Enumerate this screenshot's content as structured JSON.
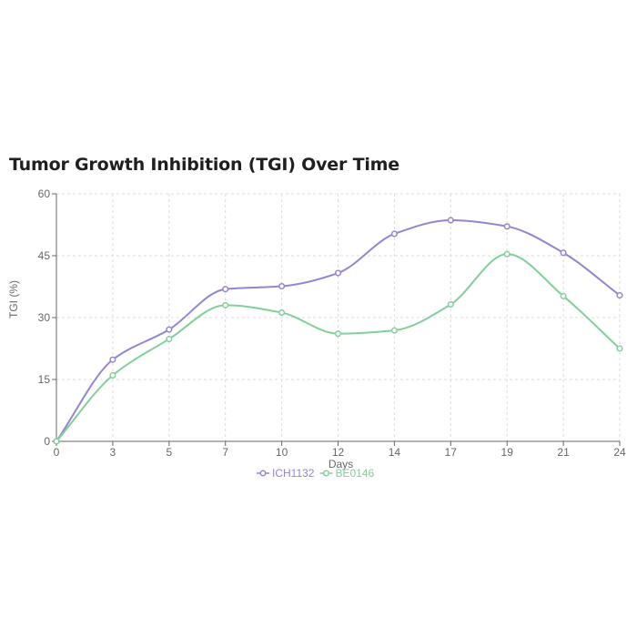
{
  "chart_data": {
    "type": "line",
    "title": "Tumor Growth Inhibition (TGI) Over Time",
    "xlabel": "Days",
    "ylabel": "TGI (%)",
    "categories": [
      "0",
      "3",
      "5",
      "7",
      "10",
      "12",
      "14",
      "17",
      "19",
      "21",
      "24"
    ],
    "yticks": [
      "0",
      "15",
      "30",
      "45",
      "60"
    ],
    "ylim": [
      0,
      60
    ],
    "grid": true,
    "legend_position": "bottom-center",
    "series": [
      {
        "name": "ICH1132",
        "color": "#8f86d6",
        "values": [
          0,
          19.8,
          27.1,
          36.9,
          37.6,
          40.8,
          50.3,
          53.6,
          52.1,
          45.7,
          35.4
        ]
      },
      {
        "name": "BE0146",
        "color": "#82cf9b",
        "values": [
          0,
          16.0,
          24.8,
          33.0,
          31.2,
          26.1,
          26.9,
          33.2,
          45.4,
          35.2,
          22.5
        ]
      }
    ]
  }
}
